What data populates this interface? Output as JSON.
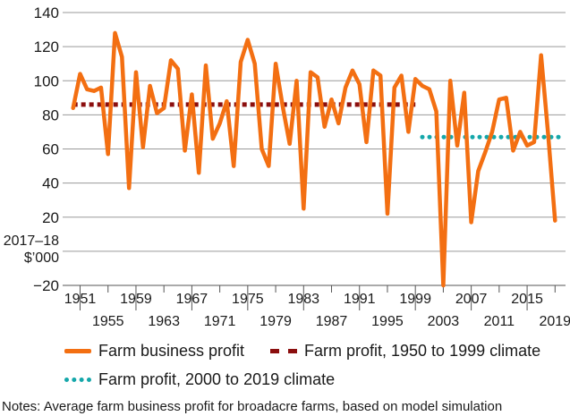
{
  "chart_data": {
    "type": "line",
    "title": "",
    "xlabel": "",
    "ylabel_lines": [
      "2017–18",
      "$’000"
    ],
    "ylim": [
      -20,
      140
    ],
    "yticks": [
      -20,
      0,
      20,
      40,
      60,
      80,
      100,
      120,
      140
    ],
    "ytick_labels": [
      "−20",
      "",
      "20",
      "40",
      "60",
      "80",
      "100",
      "120",
      "140"
    ],
    "xlim": [
      1948.5,
      2020.5
    ],
    "xticks_upper": [
      1951,
      1959,
      1967,
      1975,
      1983,
      1991,
      1999,
      2007,
      2015
    ],
    "xticks_lower": [
      1955,
      1963,
      1971,
      1979,
      1987,
      1995,
      2003,
      2011,
      2019
    ],
    "grid": true,
    "series": [
      {
        "name": "Farm business profit",
        "style": "solid",
        "color": "#f36f12",
        "x": [
          1950,
          1951,
          1952,
          1953,
          1954,
          1955,
          1956,
          1957,
          1958,
          1959,
          1960,
          1961,
          1962,
          1963,
          1964,
          1965,
          1966,
          1967,
          1968,
          1969,
          1970,
          1971,
          1972,
          1973,
          1974,
          1975,
          1976,
          1977,
          1978,
          1979,
          1980,
          1981,
          1982,
          1983,
          1984,
          1985,
          1986,
          1987,
          1988,
          1989,
          1990,
          1991,
          1992,
          1993,
          1994,
          1995,
          1996,
          1997,
          1998,
          1999,
          2000,
          2001,
          2002,
          2003,
          2004,
          2005,
          2006,
          2007,
          2008,
          2009,
          2010,
          2011,
          2012,
          2013,
          2014,
          2015,
          2016,
          2017,
          2018,
          2019
        ],
        "y": [
          84,
          104,
          95,
          94,
          96,
          57,
          128,
          114,
          37,
          105,
          61,
          97,
          81,
          84,
          112,
          107,
          59,
          92,
          46,
          109,
          66,
          75,
          88,
          50,
          111,
          124,
          110,
          60,
          50,
          110,
          85,
          63,
          100,
          25,
          105,
          102,
          73,
          89,
          75,
          96,
          106,
          98,
          64,
          106,
          103,
          22,
          96,
          103,
          70,
          101,
          97,
          95,
          82,
          -20,
          100,
          62,
          93,
          17,
          47,
          58,
          70,
          89,
          90,
          59,
          70,
          62,
          64,
          115,
          69,
          18
        ]
      },
      {
        "name": "Farm profit, 1950 to 1999 climate",
        "style": "dashed",
        "color": "#8b0e0e",
        "x": [
          1950,
          1999
        ],
        "y": [
          86,
          86
        ]
      },
      {
        "name": "Farm profit, 2000 to 2019 climate",
        "style": "dotted",
        "color": "#15a7aa",
        "x": [
          2000,
          2020
        ],
        "y": [
          67,
          67
        ]
      }
    ],
    "legend": [
      "Farm business profit",
      "Farm profit, 1950 to 1999 climate",
      "Farm profit, 2000 to 2019 climate"
    ],
    "notes": "Notes: Average farm business profit for broadacre farms, based on model simulation"
  }
}
